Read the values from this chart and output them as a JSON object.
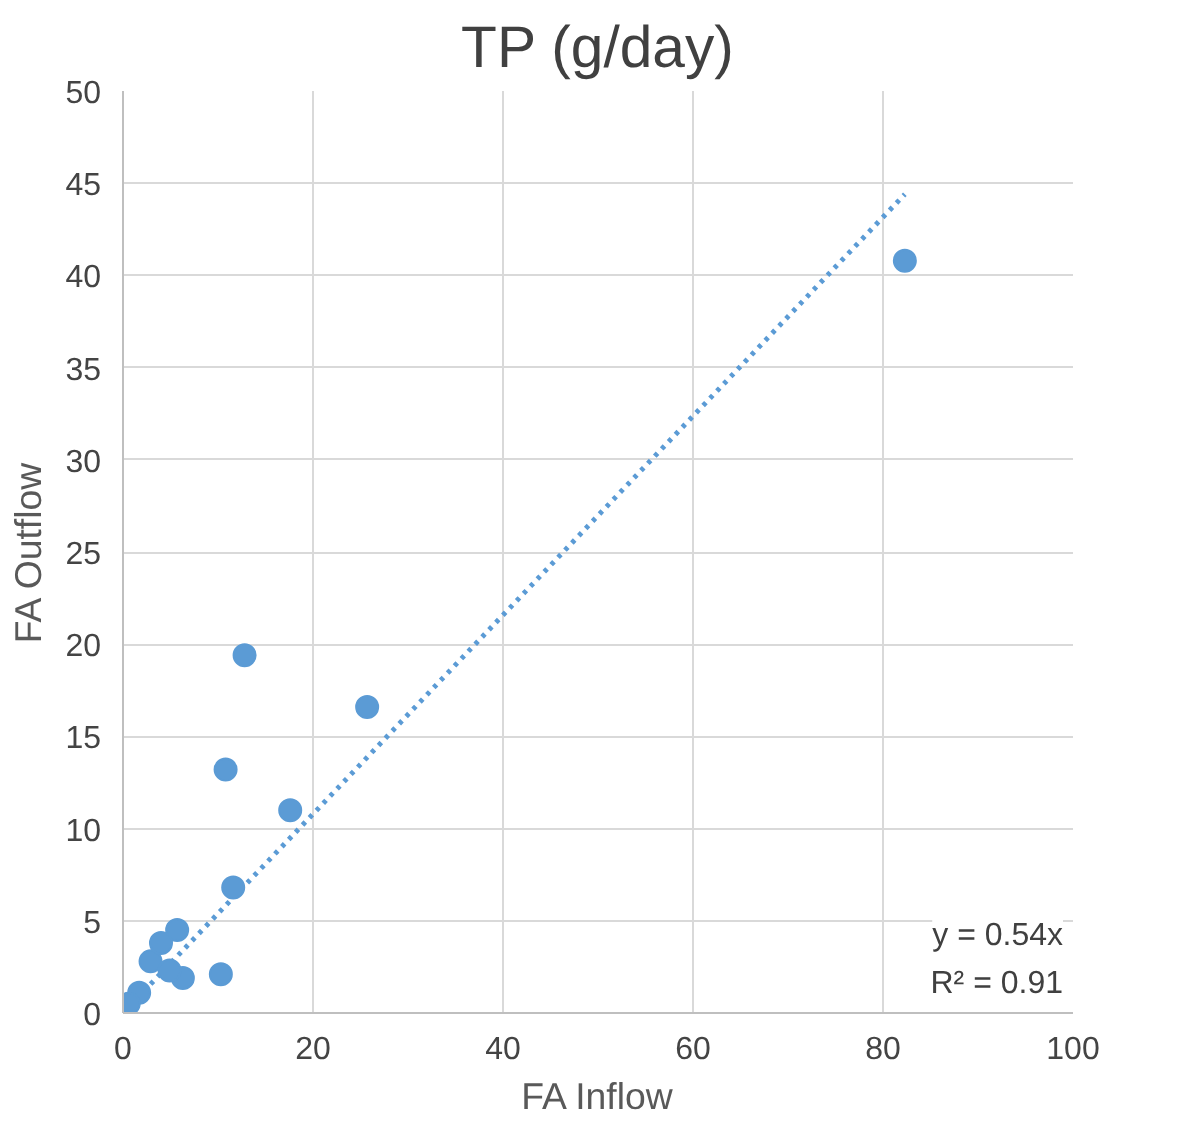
{
  "chart_data": {
    "type": "scatter",
    "title": "TP (g/day)",
    "xlabel": "FA Inflow",
    "ylabel": "FA Outflow",
    "xlim": [
      0,
      100
    ],
    "xticks": [
      0,
      20,
      40,
      60,
      80,
      100
    ],
    "ylim": [
      0,
      50
    ],
    "yticks": [
      0,
      5,
      10,
      15,
      20,
      25,
      30,
      35,
      40,
      45,
      50
    ],
    "grid": true,
    "series": [
      {
        "color": "#5b9bd5",
        "marker": "circle",
        "x": [
          82.3,
          12.8,
          25.7,
          10.8,
          17.6,
          11.6,
          10.3,
          5.7,
          6.3,
          2.9,
          4.0,
          1.7,
          0.6,
          4.9
        ],
        "values": [
          40.8,
          19.4,
          16.6,
          13.2,
          11.0,
          6.8,
          2.1,
          4.5,
          1.9,
          2.8,
          3.8,
          1.1,
          0.5,
          2.3
        ]
      },
      {
        "type": "line",
        "color": "#5b9bd5",
        "line_style": "dotted",
        "marker": "none",
        "x": [
          0,
          82.3
        ],
        "values": [
          0,
          44.4
        ]
      }
    ],
    "annotations": [
      "y = 0.54x",
      "R² = 0.91"
    ]
  }
}
